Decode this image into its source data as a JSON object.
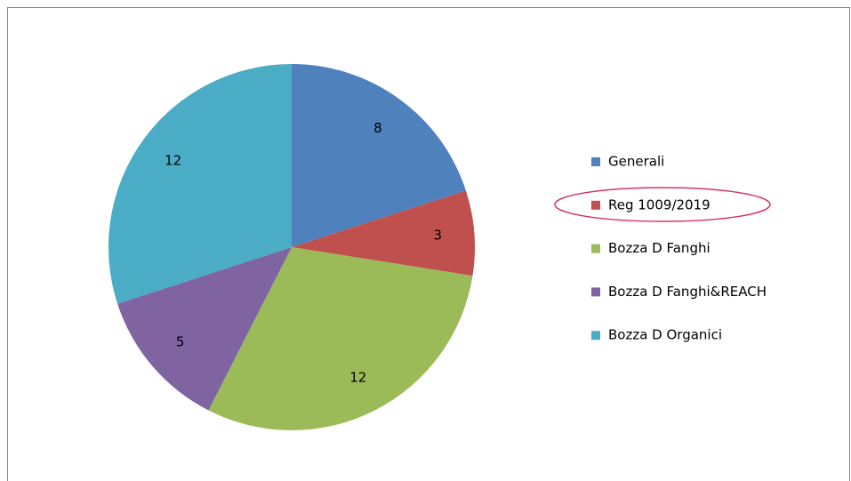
{
  "chart_data": {
    "type": "pie",
    "categories": [
      "Generali",
      "Reg 1009/2019",
      "Bozza D Fanghi",
      "Bozza D Fanghi&REACH",
      "Bozza D Organici"
    ],
    "values": [
      8,
      3,
      12,
      5,
      12
    ],
    "colors": [
      "#4f81bd",
      "#c0504d",
      "#9bbb59",
      "#8064a2",
      "#4bacc6"
    ],
    "legend": "right"
  }
}
